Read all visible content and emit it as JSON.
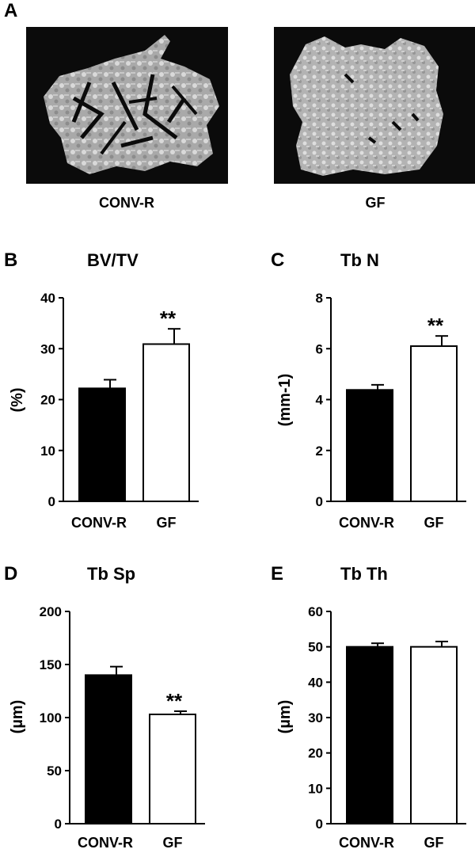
{
  "panel_a": {
    "letter": "A",
    "images": [
      {
        "caption": "CONV-R"
      },
      {
        "caption": "GF"
      }
    ]
  },
  "chart_data": [
    {
      "letter": "B",
      "type": "bar",
      "title": "BV/TV",
      "ylabel": "(%)",
      "categories": [
        "CONV-R",
        "GF"
      ],
      "values": [
        22.2,
        30.9
      ],
      "errors": [
        1.7,
        3.0
      ],
      "significance": [
        "",
        "**"
      ],
      "bar_colors": [
        "#000000",
        "#ffffff"
      ],
      "ylim": [
        0,
        40
      ],
      "yticks": [
        0,
        10,
        20,
        30,
        40
      ],
      "grid": false,
      "legend": "none"
    },
    {
      "letter": "C",
      "type": "bar",
      "title": "Tb N",
      "ylabel": "(mm-1)",
      "categories": [
        "CONV-R",
        "GF"
      ],
      "values": [
        4.38,
        6.1
      ],
      "errors": [
        0.2,
        0.4
      ],
      "significance": [
        "",
        "**"
      ],
      "bar_colors": [
        "#000000",
        "#ffffff"
      ],
      "ylim": [
        0,
        8
      ],
      "yticks": [
        0,
        2,
        4,
        6,
        8
      ],
      "grid": false,
      "legend": "none"
    },
    {
      "letter": "D",
      "type": "bar",
      "title": "Tb Sp",
      "ylabel": "(µm)",
      "categories": [
        "CONV-R",
        "GF"
      ],
      "values": [
        140,
        103
      ],
      "errors": [
        8,
        3
      ],
      "significance": [
        "",
        "**"
      ],
      "bar_colors": [
        "#000000",
        "#ffffff"
      ],
      "ylim": [
        0,
        200
      ],
      "yticks": [
        0,
        50,
        100,
        150,
        200
      ],
      "grid": false,
      "legend": "none"
    },
    {
      "letter": "E",
      "type": "bar",
      "title": "Tb Th",
      "ylabel": "(µm)",
      "categories": [
        "CONV-R",
        "GF"
      ],
      "values": [
        50,
        50
      ],
      "errors": [
        1,
        1.5
      ],
      "significance": [
        "",
        ""
      ],
      "bar_colors": [
        "#000000",
        "#ffffff"
      ],
      "ylim": [
        0,
        60
      ],
      "yticks": [
        0,
        10,
        20,
        30,
        40,
        50,
        60
      ],
      "grid": false,
      "legend": "none"
    }
  ]
}
